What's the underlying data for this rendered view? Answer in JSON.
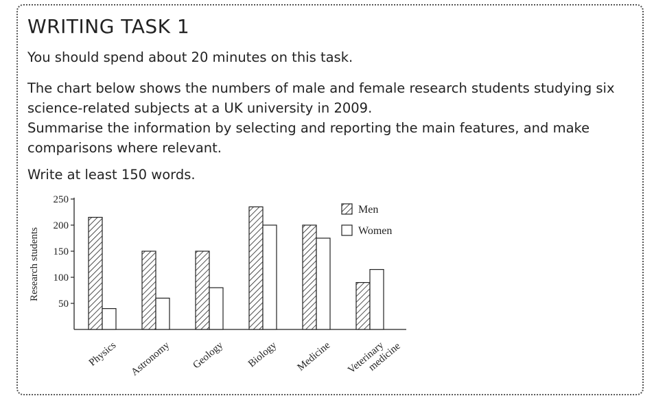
{
  "task": {
    "title": "WRITING TASK 1",
    "time_instruction": "You should spend about 20 minutes on this task.",
    "prompt_lines": [
      "The chart below shows the numbers of male and female research students studying six",
      "science-related subjects at a UK university in 2009.",
      "Summarise the information by selecting and reporting the main features, and make",
      "comparisons where relevant."
    ],
    "word_instruction": "Write at least 150 words."
  },
  "chart_data": {
    "type": "bar",
    "title": "",
    "xlabel": "",
    "ylabel": "Research students",
    "ylim": [
      0,
      250
    ],
    "yticks": [
      50,
      100,
      150,
      200,
      250
    ],
    "categories": [
      [
        "Physics"
      ],
      [
        "Astronomy"
      ],
      [
        "Geology"
      ],
      [
        "Biology"
      ],
      [
        "Medicine"
      ],
      [
        "Veterinary",
        "medicine"
      ]
    ],
    "series": [
      {
        "name": "Men",
        "values": [
          215,
          150,
          150,
          235,
          200,
          90
        ],
        "fill": "hatched"
      },
      {
        "name": "Women",
        "values": [
          40,
          60,
          80,
          200,
          175,
          115
        ],
        "fill": "white"
      }
    ],
    "legend_position": "top-right",
    "grid": false
  }
}
